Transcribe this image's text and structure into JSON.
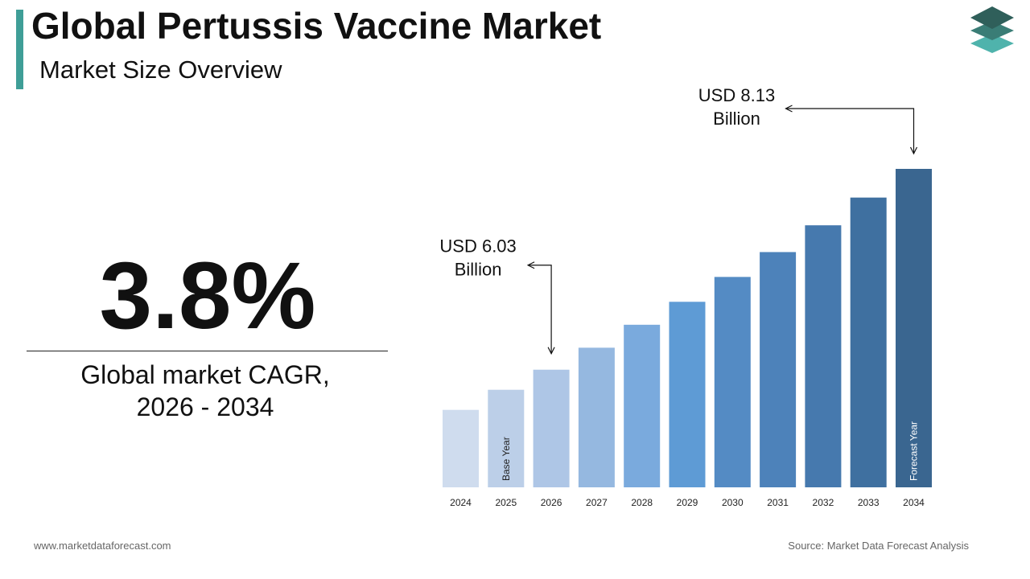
{
  "header": {
    "title": "Global Pertussis Vaccine Market",
    "subtitle": "Market Size Overview"
  },
  "cagr": {
    "value": "3.8%",
    "label_line1": "Global market CAGR,",
    "label_line2": "2026 - 2034"
  },
  "colors": {
    "accent": "#3f9e97",
    "logo_dark": "#2f5f5a",
    "logo_mid": "#3a7d76",
    "logo_light": "#4fb3ac"
  },
  "chart_data": {
    "type": "bar",
    "title": "",
    "xlabel": "",
    "ylabel": "",
    "categories": [
      "2024",
      "2025",
      "2026",
      "2027",
      "2028",
      "2029",
      "2030",
      "2031",
      "2032",
      "2033",
      "2034"
    ],
    "values": [
      5.61,
      5.82,
      6.03,
      6.26,
      6.5,
      6.74,
      7.0,
      7.26,
      7.54,
      7.83,
      8.13
    ],
    "ylim": [
      4.8,
      8.13
    ],
    "bar_colors": [
      "#cfdcee",
      "#bccfe8",
      "#aec6e6",
      "#95b8e0",
      "#7aaadd",
      "#5e9bd5",
      "#548bc4",
      "#4d82ba",
      "#4679ae",
      "#3f70a0",
      "#3a6690"
    ],
    "in_bar_labels": [
      {
        "category": "2025",
        "text": "Base Year",
        "color": "#222222"
      },
      {
        "category": "2034",
        "text": "Forecast Year",
        "color": "#ffffff"
      }
    ],
    "annotations": [
      {
        "category": "2026",
        "line1": "USD 6.03",
        "line2": "Billion"
      },
      {
        "category": "2034",
        "line1": "USD 8.13",
        "line2": "Billion"
      }
    ],
    "grid": false,
    "legend": "none"
  },
  "footer": {
    "website": "www.marketdataforecast.com",
    "source": "Source: Market Data Forecast Analysis"
  }
}
